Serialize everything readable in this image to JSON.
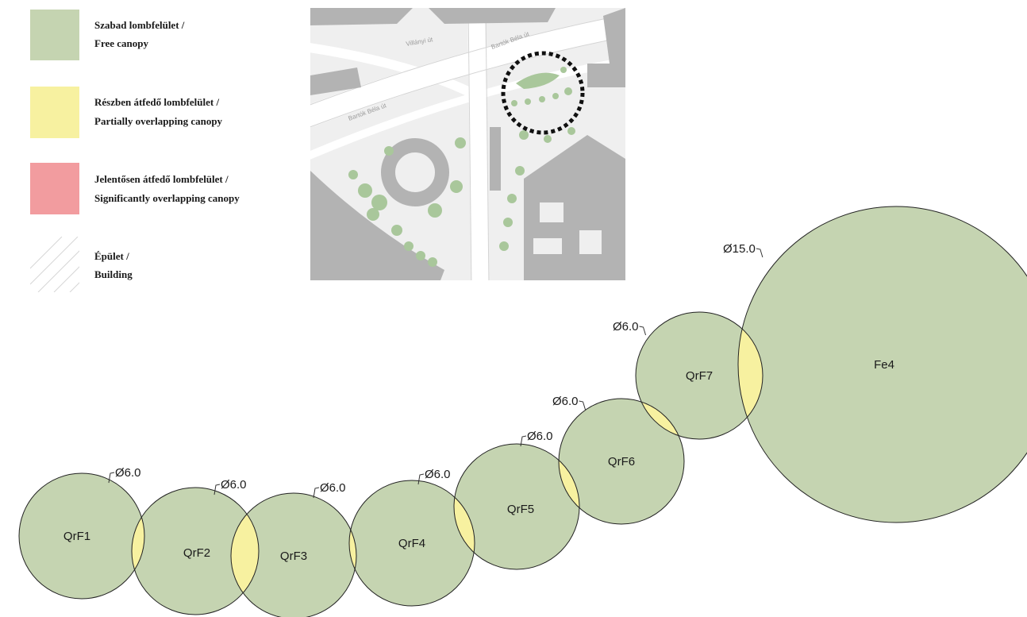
{
  "colors": {
    "free": "#c5d4b1",
    "partial": "#f7f1a0",
    "significant": "#f29c9f",
    "circle_stroke": "#222222",
    "building": "#b3b3b3",
    "map_bg": "#efefef",
    "map_tree": "#a9c79b"
  },
  "legend": [
    {
      "key": "free",
      "line1": "Szabad lombfelület /",
      "line2": "Free canopy"
    },
    {
      "key": "partial",
      "line1": "Részben átfedő lombfelület /",
      "line2": "Partially overlapping canopy"
    },
    {
      "key": "significant",
      "line1": "Jelentősen átfedő lombfelület /",
      "line2": "Significantly overlapping canopy"
    },
    {
      "key": "building",
      "line1": "Épület /",
      "line2": "Building"
    }
  ],
  "map": {
    "streets": [
      "Villányi út",
      "Bartók Béla út",
      "Bartók Béla út"
    ]
  },
  "trees": [
    {
      "id": "QrF1",
      "diameter_label": "Ø6.0"
    },
    {
      "id": "QrF2",
      "diameter_label": "Ø6.0"
    },
    {
      "id": "QrF3",
      "diameter_label": "Ø6.0"
    },
    {
      "id": "QrF4",
      "diameter_label": "Ø6.0"
    },
    {
      "id": "QrF5",
      "diameter_label": "Ø6.0"
    },
    {
      "id": "QrF6",
      "diameter_label": "Ø6.0"
    },
    {
      "id": "QrF7",
      "diameter_label": "Ø6.0"
    },
    {
      "id": "Fe4",
      "diameter_label": "Ø15.0"
    }
  ]
}
